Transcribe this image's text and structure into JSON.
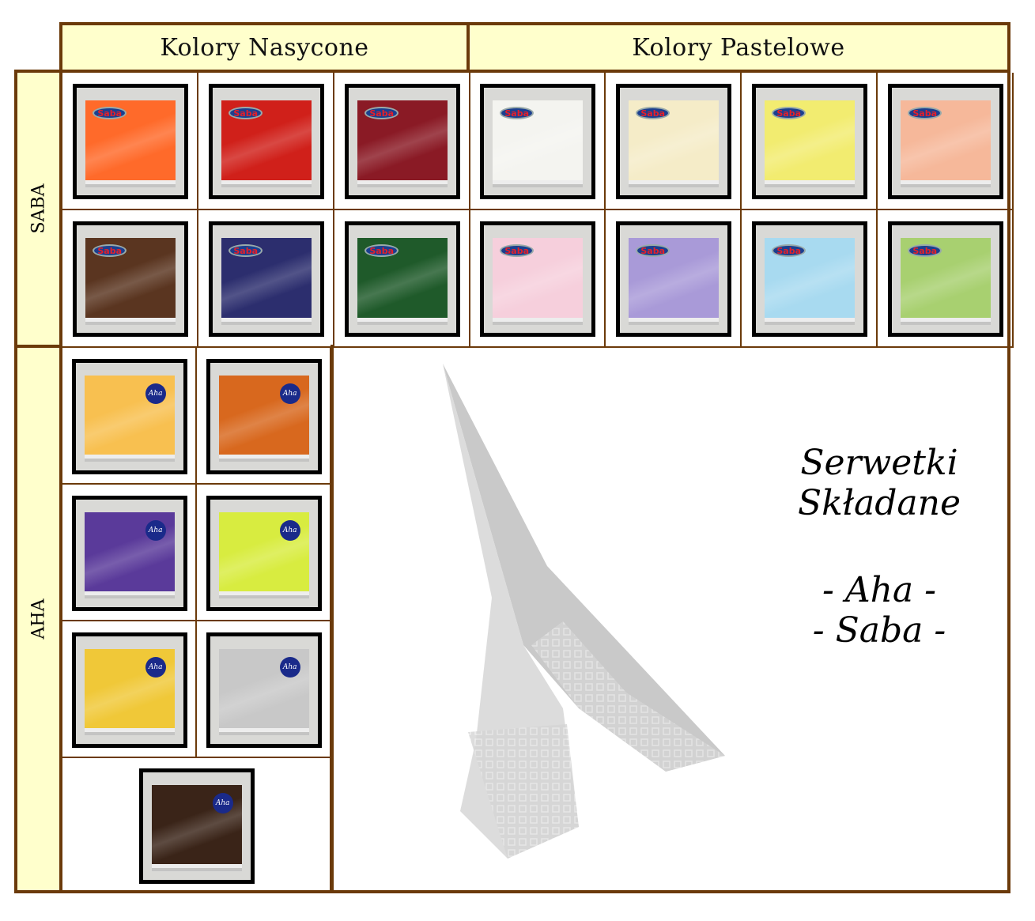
{
  "headers": {
    "saturated": "Kolory Nasycone",
    "pastel": "Kolory Pastelowe"
  },
  "row_labels": {
    "saba": "SABA",
    "aha": "AHA"
  },
  "brand_logos": {
    "saba": "Saba",
    "aha": "Aha"
  },
  "saba_napkins": [
    [
      "#ff6a2a",
      "#d0201a",
      "#8a1a25",
      "#f4f4f0",
      "#f5ecc8",
      "#f2ec70",
      "#f6b89a"
    ],
    [
      "#5a3520",
      "#2c2e6e",
      "#1f5a2a",
      "#f6cfdc",
      "#a99ad8",
      "#a8daf0",
      "#a8d070"
    ]
  ],
  "aha_napkins": [
    "#f8c050",
    "#d8681e",
    "#5a3a9a",
    "#d8ec40",
    "#f0c838",
    "#c8c8c8",
    "#3a2418"
  ],
  "colors": {
    "border": "#6b3a0a",
    "header_bg": "#ffffcc"
  },
  "promo": {
    "line1": "Serwetki",
    "line2": "Składane",
    "line3": "- Aha -",
    "line4": "- Saba -"
  }
}
